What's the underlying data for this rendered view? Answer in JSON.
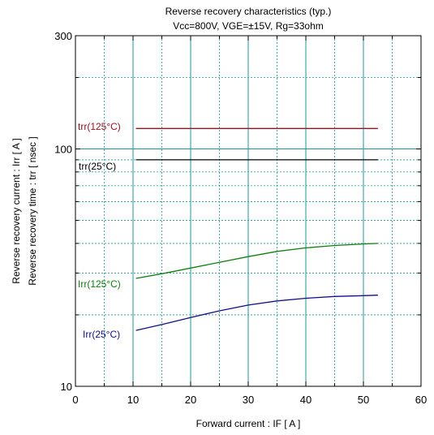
{
  "chart_data": {
    "type": "line",
    "title": "Reverse recovery characteristics  (typ.)",
    "subtitle": "Vcc=800V, VGE=±15V, Rg=33ohm",
    "xlabel": "Forward current  :  IF  [ A ]",
    "ylabel": "Reverse recovery current  :  Irr  [ A ]",
    "ylabel2": "Reverse recovery time  :  trr  [ nsec ]",
    "xlim": [
      0,
      60
    ],
    "ylim": [
      10,
      300
    ],
    "yscale": "log",
    "grid": true,
    "x_ticks": [
      "0",
      "10",
      "20",
      "30",
      "40",
      "50",
      "60"
    ],
    "y_ticks": [
      "10",
      "100",
      "300"
    ],
    "series": [
      {
        "name": "trr(125°C)",
        "color": "#a01020",
        "x": [
          10.5,
          52.5
        ],
        "y": [
          122,
          122
        ]
      },
      {
        "name": "trr(25°C)",
        "color": "#000000",
        "x": [
          10.5,
          52.5
        ],
        "y": [
          90,
          90
        ]
      },
      {
        "name": "Irr(125°C)",
        "color": "#108010",
        "x": [
          10.5,
          15,
          20,
          25,
          30,
          35,
          40,
          45,
          50,
          52.5
        ],
        "y": [
          28.5,
          29.8,
          31.5,
          33.3,
          35.2,
          37.0,
          38.3,
          39.2,
          39.8,
          40.0
        ]
      },
      {
        "name": "Irr(25°C)",
        "color": "#101090",
        "x": [
          10.5,
          15,
          20,
          25,
          30,
          35,
          40,
          45,
          50,
          52.5
        ],
        "y": [
          17.2,
          18.2,
          19.5,
          20.8,
          22.0,
          22.9,
          23.5,
          23.9,
          24.1,
          24.2
        ]
      }
    ]
  }
}
